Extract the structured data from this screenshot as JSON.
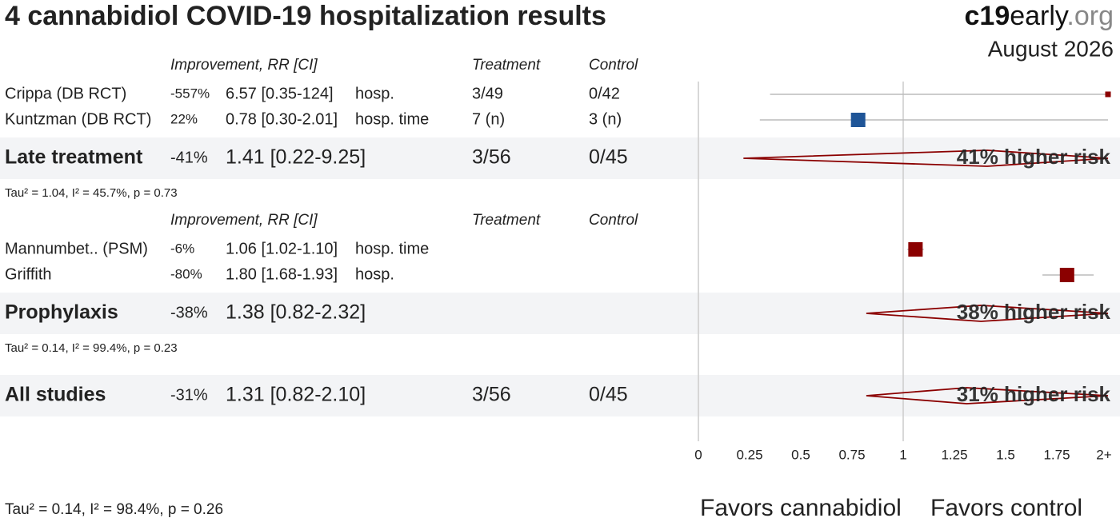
{
  "chart_data": {
    "type": "forest",
    "title": "4 cannabidiol COVID-19 hospitalization results",
    "brand": [
      "c19",
      "early",
      ".org"
    ],
    "date": "August 2026",
    "column_headers": [
      "Improvement, RR [CI]",
      "Treatment",
      "Control"
    ],
    "colors": {
      "harm": "#8b0000",
      "benefit": "#1f5597"
    },
    "groups": [
      {
        "studies": [
          {
            "name": "Crippa (DB RCT)",
            "improvement": "-557%",
            "rr": 6.57,
            "lo": 0.35,
            "hi": 124,
            "rr_label": "6.57 [0.35-124]",
            "outcome": "hosp.",
            "treatment": "3/49",
            "control": "0/42"
          },
          {
            "name": "Kuntzman (DB RCT)",
            "improvement": "22%",
            "rr": 0.78,
            "lo": 0.3,
            "hi": 2.01,
            "rr_label": "0.78 [0.30-2.01]",
            "outcome": "hosp. time",
            "treatment": "7 (n)",
            "control": "3 (n)"
          }
        ],
        "summary": {
          "name": "Late treatment",
          "improvement": "-41%",
          "rr": 1.41,
          "lo": 0.22,
          "hi": 9.25,
          "rr_label": "1.41 [0.22-9.25]",
          "treatment": "3/56",
          "control": "0/45",
          "effect_text": "41% higher risk"
        },
        "heterogeneity": "Tau² = 1.04, I² = 45.7%, p = 0.73"
      },
      {
        "studies": [
          {
            "name": "Mannumbet.. (PSM)",
            "improvement": "-6%",
            "rr": 1.06,
            "lo": 1.02,
            "hi": 1.1,
            "rr_label": "1.06 [1.02-1.10]",
            "outcome": "hosp. time"
          },
          {
            "name": "Griffith",
            "improvement": "-80%",
            "rr": 1.8,
            "lo": 1.68,
            "hi": 1.93,
            "rr_label": "1.80 [1.68-1.93]",
            "outcome": "hosp."
          }
        ],
        "summary": {
          "name": "Prophylaxis",
          "improvement": "-38%",
          "rr": 1.38,
          "lo": 0.82,
          "hi": 2.32,
          "rr_label": "1.38 [0.82-2.32]",
          "effect_text": "38% higher risk"
        },
        "heterogeneity": "Tau² = 0.14, I² = 99.4%, p = 0.23"
      }
    ],
    "overall": {
      "name": "All studies",
      "improvement": "-31%",
      "rr": 1.31,
      "lo": 0.82,
      "hi": 2.1,
      "rr_label": "1.31 [0.82-2.10]",
      "treatment": "3/56",
      "control": "0/45",
      "effect_text": "31% higher risk",
      "heterogeneity": "Tau² = 0.14, I² = 98.4%, p = 0.26"
    },
    "xlim": [
      0,
      2
    ],
    "xticks": [
      0,
      0.25,
      0.5,
      0.75,
      1,
      1.25,
      1.5,
      1.75,
      {
        "value": 2,
        "label": "2+"
      }
    ],
    "favors": [
      "Favors cannabidiol",
      "Favors control"
    ]
  }
}
